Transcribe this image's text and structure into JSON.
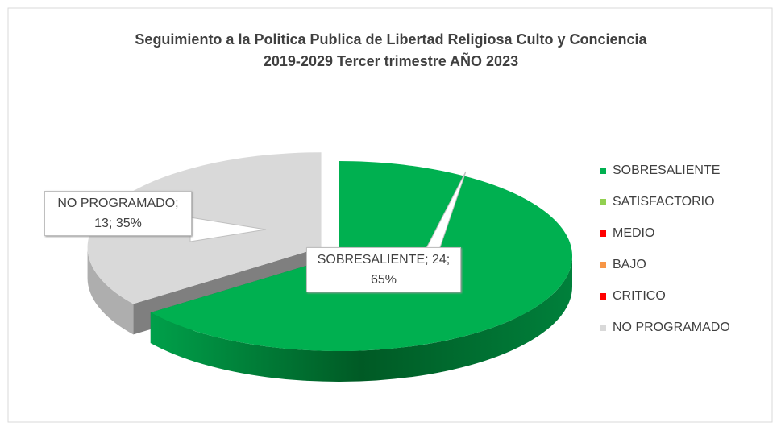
{
  "chart_data": {
    "type": "pie",
    "title": "Seguimiento a la Politica Publica de Libertad Religiosa Culto y Conciencia 2019-2029  Tercer trimestre AÑO 2023",
    "categories": [
      "SOBRESALIENTE",
      "SATISFACTORIO",
      "MEDIO",
      "BAJO",
      "CRITICO",
      "NO PROGRAMADO"
    ],
    "values": [
      24,
      0,
      0,
      0,
      0,
      13
    ],
    "value_labels": [
      "SOBRESALIENTE; 24; 65%",
      null,
      null,
      null,
      null,
      "NO PROGRAMADO; 13; 35%"
    ],
    "colors": [
      "#00b050",
      "#92d050",
      "#ff0000",
      "#f79646",
      "#ff0000",
      "#d9d9d9"
    ],
    "legend": "right"
  }
}
